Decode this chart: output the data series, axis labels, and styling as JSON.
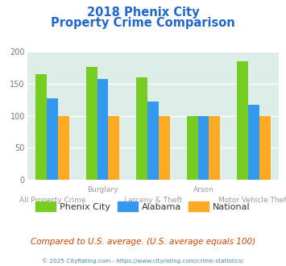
{
  "title_line1": "2018 Phenix City",
  "title_line2": "Property Crime Comparison",
  "phenix_city": [
    165,
    177,
    160,
    100,
    185
  ],
  "alabama": [
    127,
    158,
    122,
    100,
    117
  ],
  "national": [
    100,
    100,
    100,
    100,
    100
  ],
  "top_labels": [
    "",
    "Burglary",
    "",
    "Arson",
    ""
  ],
  "bottom_labels": [
    "All Property Crime",
    "",
    "Larceny & Theft",
    "",
    "Motor Vehicle Theft"
  ],
  "colors": {
    "phenix_city": "#77cc22",
    "alabama": "#3399ee",
    "national": "#ffaa22"
  },
  "ylim": [
    0,
    200
  ],
  "yticks": [
    0,
    50,
    100,
    150,
    200
  ],
  "bg_color": "#ddeee8",
  "title_color": "#2266cc",
  "label_color": "#999999",
  "footer_text": "Compared to U.S. average. (U.S. average equals 100)",
  "credit_text": "© 2025 CityRating.com - https://www.cityrating.com/crime-statistics/",
  "legend_labels": [
    "Phenix City",
    "Alabama",
    "National"
  ],
  "bar_width": 0.22
}
